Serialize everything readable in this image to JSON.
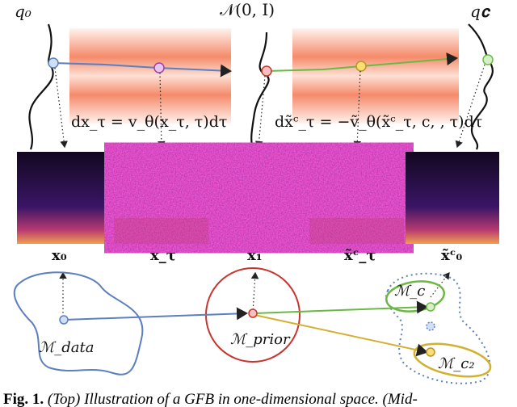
{
  "labels": {
    "q0": "q₀",
    "prior": "𝒩(0, I)",
    "qc": "q𝐜",
    "eq_forward": "dx_τ = v_θ(x_τ, τ)dτ",
    "eq_reverse": "dx̃ᶜ_τ = −ṽ_θ(x̃ᶜ_τ, c, , τ)dτ"
  },
  "spectrogram_labels": [
    "x₀",
    "x_τ",
    "x₁",
    "x̃ᶜ_τ",
    "x̃ᶜ₀"
  ],
  "manifolds": {
    "data": "ℳ_data",
    "prior": "ℳ_prior",
    "c": "ℳ_c",
    "c2": "ℳ_c₂"
  },
  "caption": {
    "prefix": "Fig. 1.",
    "text": "(Top) Illustration of a GFB in one-dimensional space. (Mid-"
  },
  "colors": {
    "blue": "#5b7fbf",
    "red": "#c8352e",
    "green": "#6cb845",
    "yellow": "#d4b030",
    "spec": "#3a1060"
  }
}
